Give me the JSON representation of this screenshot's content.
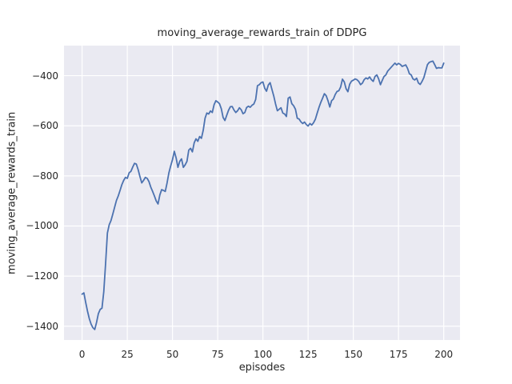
{
  "window": {
    "title": "moving_average_rewards_train of DDPG"
  },
  "chart_data": {
    "type": "line",
    "title": "moving_average_rewards_train of DDPG",
    "xlabel": "episodes",
    "ylabel": "moving_average_rewards_train",
    "legend_position": "none",
    "grid": true,
    "style": "seaborn-darkgrid",
    "axes_background": "#eaeaf2",
    "grid_color": "#ffffff",
    "line_color": "#4c72b0",
    "text_color": "#262626",
    "xlim": [
      -10,
      209
    ],
    "ylim": [
      -1455,
      -280
    ],
    "xticks": [
      0,
      25,
      50,
      75,
      100,
      125,
      150,
      175,
      200
    ],
    "yticks": [
      -400,
      -600,
      -800,
      -1000,
      -1200,
      -1400
    ],
    "x": [
      0,
      1,
      2,
      3,
      4,
      5,
      6,
      7,
      8,
      9,
      10,
      11,
      12,
      13,
      14,
      15,
      16,
      17,
      18,
      19,
      20,
      21,
      22,
      23,
      24,
      25,
      26,
      27,
      28,
      29,
      30,
      31,
      32,
      33,
      34,
      35,
      36,
      37,
      38,
      39,
      40,
      41,
      42,
      43,
      44,
      45,
      46,
      47,
      48,
      49,
      50,
      51,
      52,
      53,
      54,
      55,
      56,
      57,
      58,
      59,
      60,
      61,
      62,
      63,
      64,
      65,
      66,
      67,
      68,
      69,
      70,
      71,
      72,
      73,
      74,
      75,
      76,
      77,
      78,
      79,
      80,
      81,
      82,
      83,
      84,
      85,
      86,
      87,
      88,
      89,
      90,
      91,
      92,
      93,
      94,
      95,
      96,
      97,
      98,
      99,
      100,
      101,
      102,
      103,
      104,
      105,
      106,
      107,
      108,
      109,
      110,
      111,
      112,
      113,
      114,
      115,
      116,
      117,
      118,
      119,
      120,
      121,
      122,
      123,
      124,
      125,
      126,
      127,
      128,
      129,
      130,
      131,
      132,
      133,
      134,
      135,
      136,
      137,
      138,
      139,
      140,
      141,
      142,
      143,
      144,
      145,
      146,
      147,
      148,
      149,
      150,
      151,
      152,
      153,
      154,
      155,
      156,
      157,
      158,
      159,
      160,
      161,
      162,
      163,
      164,
      165,
      166,
      167,
      168,
      169,
      170,
      171,
      172,
      173,
      174,
      175,
      176,
      177,
      178,
      179,
      180,
      181,
      182,
      183,
      184,
      185,
      186,
      187,
      188,
      189,
      190,
      191,
      192,
      193,
      194,
      195,
      196,
      197,
      198,
      199,
      200
    ],
    "series": [
      {
        "name": "DDPG",
        "values": [
          -1272,
          -1267,
          -1305,
          -1340,
          -1370,
          -1392,
          -1406,
          -1413,
          -1385,
          -1350,
          -1333,
          -1328,
          -1262,
          -1150,
          -1028,
          -995,
          -978,
          -952,
          -925,
          -898,
          -880,
          -858,
          -835,
          -818,
          -806,
          -810,
          -788,
          -782,
          -765,
          -750,
          -753,
          -775,
          -803,
          -828,
          -818,
          -806,
          -810,
          -823,
          -845,
          -862,
          -880,
          -900,
          -912,
          -876,
          -855,
          -858,
          -862,
          -828,
          -788,
          -760,
          -735,
          -702,
          -728,
          -766,
          -742,
          -732,
          -766,
          -756,
          -742,
          -697,
          -690,
          -704,
          -668,
          -652,
          -662,
          -643,
          -650,
          -618,
          -570,
          -549,
          -553,
          -541,
          -547,
          -516,
          -500,
          -505,
          -512,
          -532,
          -567,
          -579,
          -558,
          -538,
          -524,
          -523,
          -537,
          -547,
          -540,
          -528,
          -536,
          -552,
          -547,
          -527,
          -522,
          -526,
          -518,
          -513,
          -495,
          -440,
          -436,
          -428,
          -425,
          -450,
          -462,
          -437,
          -428,
          -455,
          -481,
          -513,
          -540,
          -534,
          -528,
          -549,
          -553,
          -563,
          -490,
          -485,
          -512,
          -520,
          -534,
          -570,
          -573,
          -584,
          -591,
          -585,
          -595,
          -601,
          -591,
          -597,
          -588,
          -574,
          -550,
          -527,
          -507,
          -490,
          -472,
          -480,
          -500,
          -525,
          -500,
          -493,
          -475,
          -463,
          -460,
          -445,
          -414,
          -425,
          -452,
          -464,
          -434,
          -422,
          -418,
          -413,
          -416,
          -423,
          -436,
          -430,
          -416,
          -409,
          -413,
          -405,
          -416,
          -423,
          -403,
          -397,
          -413,
          -436,
          -419,
          -403,
          -397,
          -382,
          -374,
          -366,
          -358,
          -350,
          -357,
          -351,
          -355,
          -363,
          -360,
          -357,
          -371,
          -392,
          -397,
          -413,
          -417,
          -410,
          -429,
          -435,
          -423,
          -408,
          -382,
          -356,
          -347,
          -344,
          -342,
          -356,
          -371,
          -368,
          -369,
          -369,
          -350
        ]
      }
    ]
  }
}
